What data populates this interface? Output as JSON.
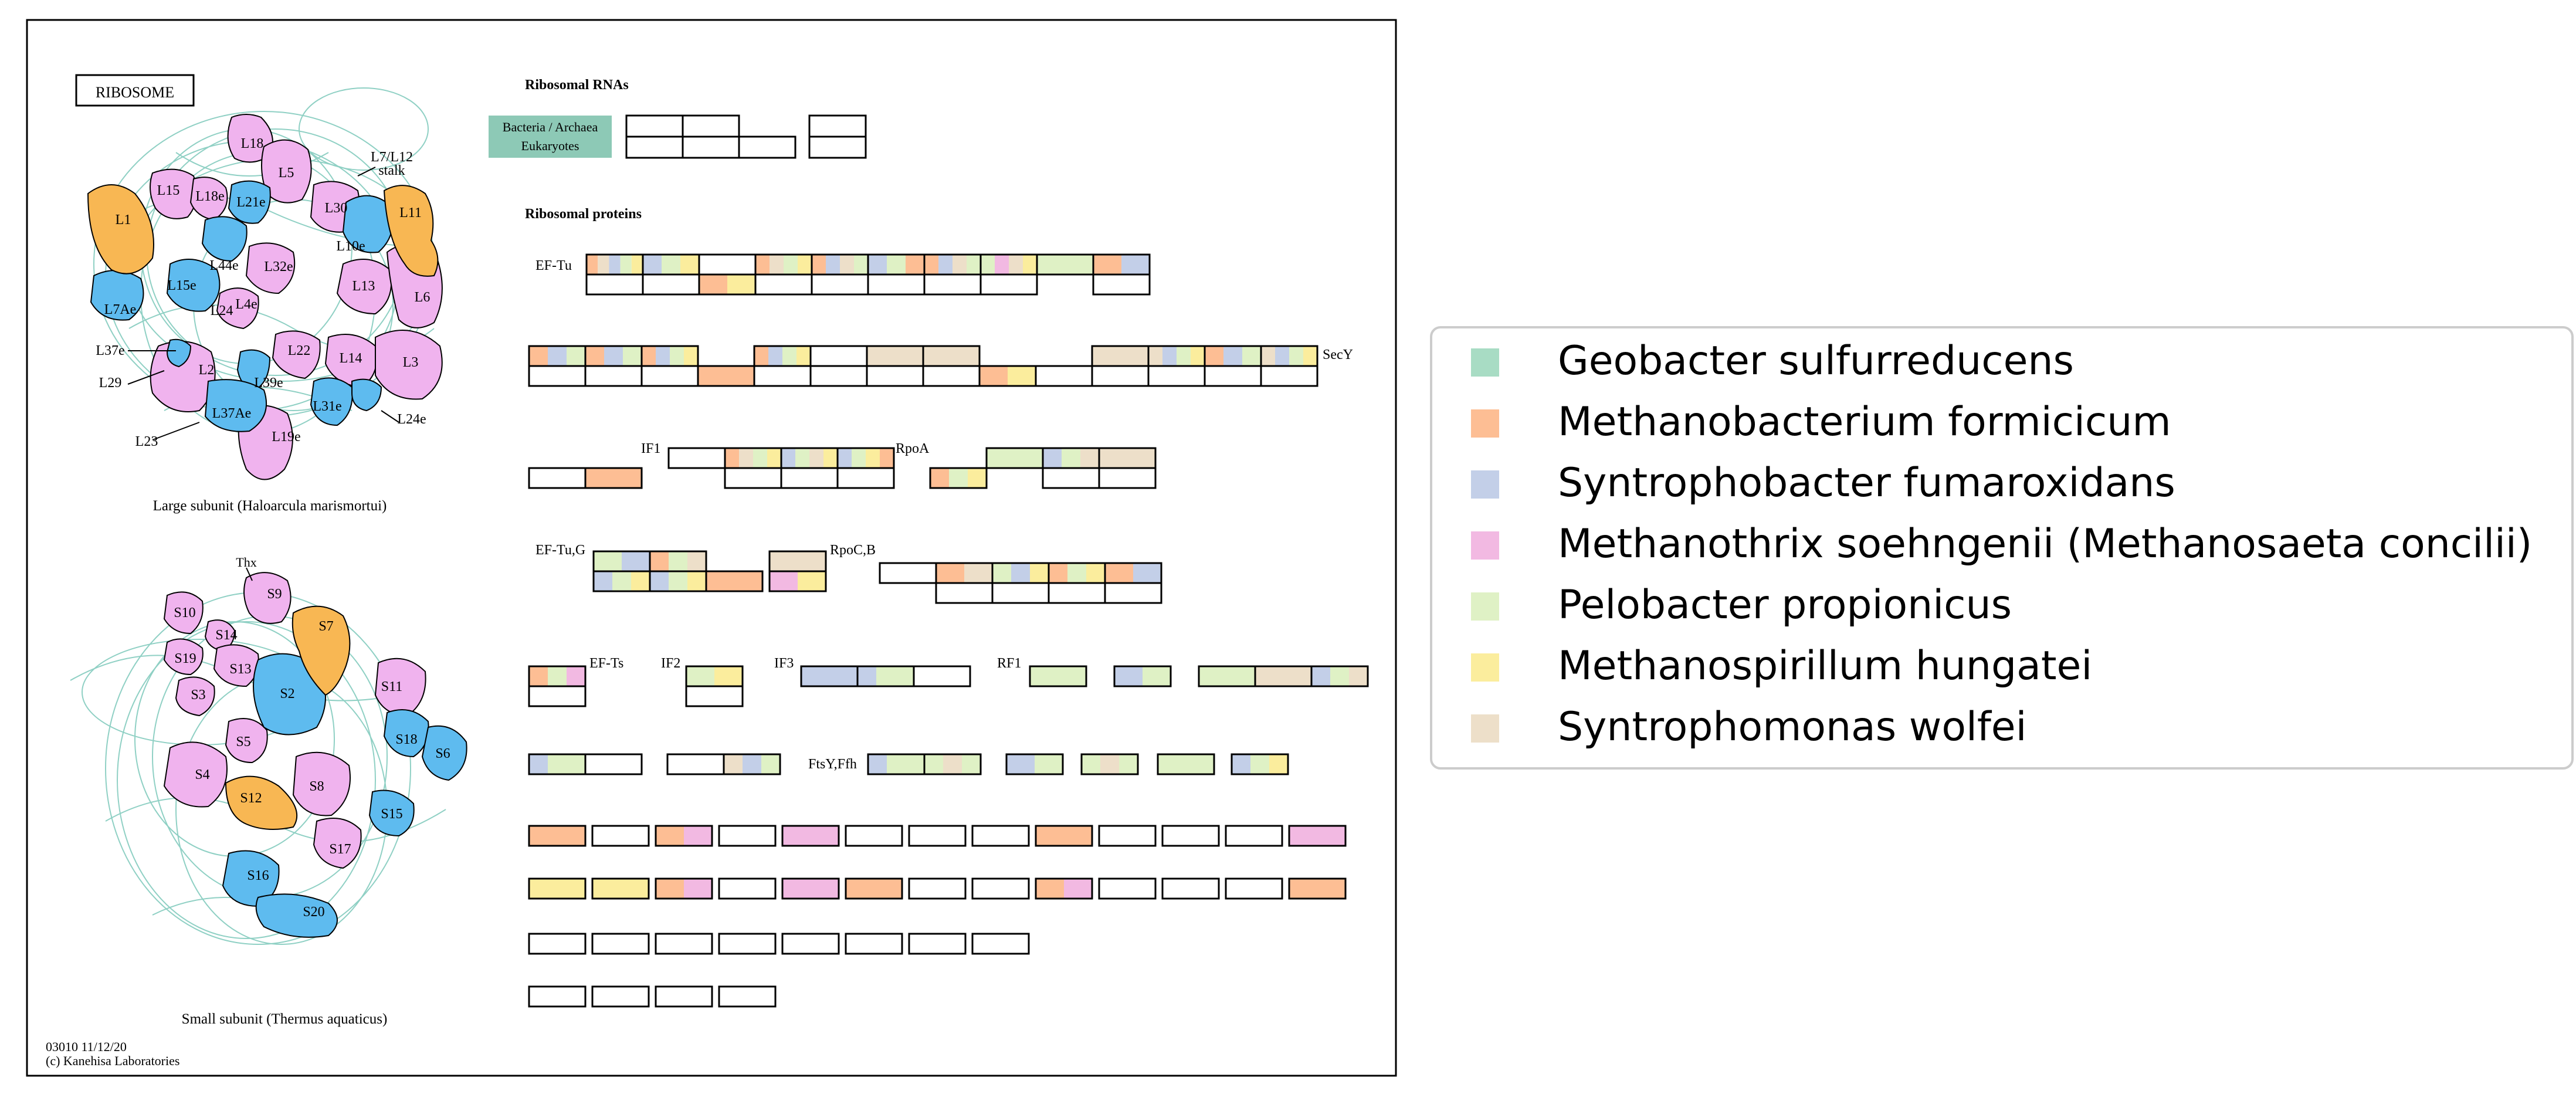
{
  "colors": {
    "geobacter": "#a8dcc4",
    "methanobacterium": "#fdbe94",
    "syntrophobacter": "#c3cfe8",
    "methanothrix": "#f2b9e2",
    "pelobacter": "#dff1c5",
    "methanospirillum": "#fbed9d",
    "syntrophomonas": "#eddfc9",
    "protein_pink": "#f0b3ee",
    "protein_blue": "#5ebbef",
    "protein_orange": "#f8b753",
    "rna_teal": "#8dc9b6",
    "thread": "#8fd0c4"
  },
  "diagram": {
    "title": "RIBOSOME",
    "rna_header": "Ribosomal RNAs",
    "rna_label_line1": "Bacteria / Archaea",
    "rna_label_line2": "Eukaryotes",
    "protein_header": "Ribosomal proteins",
    "large_caption": "Large subunit (Haloarcula marismortui)",
    "small_caption": "Small subunit (Thermus aquaticus)",
    "footer_line1": "03010 11/12/20",
    "footer_line2": "(c) Kanehisa Laboratories",
    "stalk_label_line1": "L7/L12",
    "stalk_label_line2": "stalk",
    "thx_label": "Thx"
  },
  "large_subunit_labels": [
    "L18",
    "L5",
    "L15",
    "L18e",
    "L21e",
    "L30",
    "L11",
    "L1",
    "L44e",
    "L32e",
    "L10e",
    "L6",
    "L15e",
    "L4e",
    "L13",
    "L7Ae",
    "L24",
    "L37e",
    "L22",
    "L14",
    "L3",
    "L29",
    "L2",
    "L39e",
    "L31e",
    "L24e",
    "L37Ae",
    "L19e",
    "L23"
  ],
  "small_subunit_labels": [
    "S9",
    "S10",
    "S14",
    "S7",
    "S19",
    "S13",
    "S11",
    "S3",
    "S2",
    "S18",
    "S6",
    "S5",
    "S4",
    "S12",
    "S8",
    "S15",
    "S17",
    "S16",
    "S20"
  ],
  "factor_labels": {
    "ef_tu": "EF-Tu",
    "secy": "SecY",
    "if1": "IF1",
    "rpoa": "RpoA",
    "ef_tu_g": "EF-Tu,G",
    "rpoc_b": "RpoC,B",
    "ef_ts": "EF-Ts",
    "if2": "IF2",
    "if3": "IF3",
    "rf1": "RF1",
    "ftsy_ffh": "FtsY,Ffh"
  },
  "legend": {
    "items": [
      {
        "label": "Geobacter sulfurreducens",
        "color": "#a8dcc4"
      },
      {
        "label": "Methanobacterium formicicum",
        "color": "#fdbe94"
      },
      {
        "label": "Syntrophobacter fumaroxidans",
        "color": "#c3cfe8"
      },
      {
        "label": "Methanothrix soehngenii (Methanosaeta concilii)",
        "color": "#f2b9e2"
      },
      {
        "label": "Pelobacter propionicus",
        "color": "#dff1c5"
      },
      {
        "label": "Methanospirillum hungatei",
        "color": "#fbed9d"
      },
      {
        "label": "Syntrophomonas wolfei",
        "color": "#eddfc9"
      }
    ]
  }
}
